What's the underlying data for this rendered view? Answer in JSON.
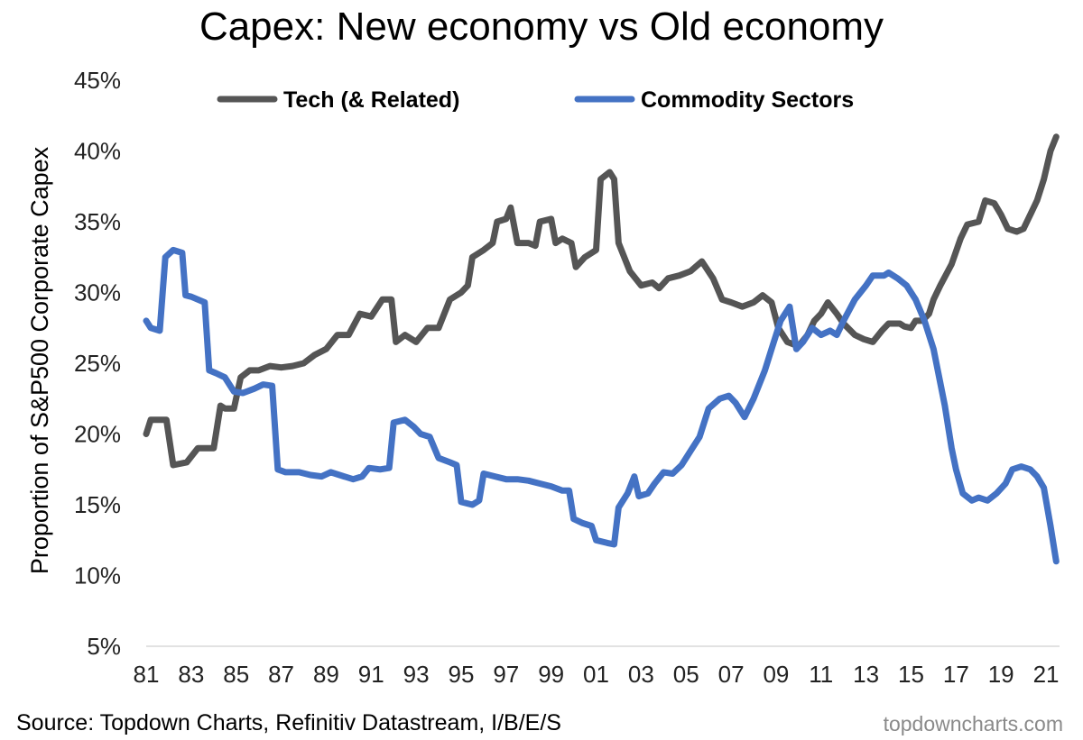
{
  "title": "Capex: New economy vs Old economy",
  "source": "Source: Topdown Charts, Refinitiv Datastream, I/B/E/S",
  "watermark": "topdowncharts.com",
  "chart_data": {
    "type": "line",
    "title": "Capex: New economy vs Old economy",
    "xlabel": "",
    "ylabel": "Proportion of S&P500 Corporate Capex",
    "x_ticks": [
      "81",
      "83",
      "85",
      "87",
      "89",
      "91",
      "93",
      "95",
      "97",
      "99",
      "01",
      "03",
      "05",
      "07",
      "09",
      "11",
      "13",
      "15",
      "17",
      "19",
      "21"
    ],
    "x_range": [
      1981,
      2021.6
    ],
    "ylim": [
      5,
      45
    ],
    "y_ticks": [
      5,
      10,
      15,
      20,
      25,
      30,
      35,
      40,
      45
    ],
    "y_tick_labels": [
      "5%",
      "10%",
      "15%",
      "20%",
      "25%",
      "30%",
      "35%",
      "40%",
      "45%"
    ],
    "grid": false,
    "legend_position": "top",
    "series": [
      {
        "name": "Tech (& Related)",
        "color": "#555555",
        "points": [
          [
            1981.0,
            20.0
          ],
          [
            1981.2,
            21.0
          ],
          [
            1981.9,
            21.0
          ],
          [
            1982.2,
            17.8
          ],
          [
            1982.8,
            18.0
          ],
          [
            1983.3,
            19.0
          ],
          [
            1983.7,
            19.0
          ],
          [
            1984.0,
            19.0
          ],
          [
            1984.3,
            22.0
          ],
          [
            1984.5,
            21.8
          ],
          [
            1984.9,
            21.8
          ],
          [
            1985.2,
            24.0
          ],
          [
            1985.6,
            24.5
          ],
          [
            1986.0,
            24.5
          ],
          [
            1986.5,
            24.8
          ],
          [
            1987.0,
            24.7
          ],
          [
            1987.5,
            24.8
          ],
          [
            1988.0,
            25.0
          ],
          [
            1988.5,
            25.6
          ],
          [
            1989.0,
            26.0
          ],
          [
            1989.5,
            27.0
          ],
          [
            1990.0,
            27.0
          ],
          [
            1990.5,
            28.5
          ],
          [
            1991.0,
            28.3
          ],
          [
            1991.5,
            29.5
          ],
          [
            1991.9,
            29.5
          ],
          [
            1992.1,
            26.5
          ],
          [
            1992.5,
            27.0
          ],
          [
            1993.0,
            26.5
          ],
          [
            1993.5,
            27.5
          ],
          [
            1994.0,
            27.5
          ],
          [
            1994.5,
            29.5
          ],
          [
            1995.0,
            30.0
          ],
          [
            1995.3,
            30.5
          ],
          [
            1995.5,
            32.5
          ],
          [
            1996.0,
            33.0
          ],
          [
            1996.4,
            33.5
          ],
          [
            1996.6,
            35.0
          ],
          [
            1997.0,
            35.2
          ],
          [
            1997.2,
            36.0
          ],
          [
            1997.5,
            33.5
          ],
          [
            1998.0,
            33.5
          ],
          [
            1998.3,
            33.3
          ],
          [
            1998.5,
            35.0
          ],
          [
            1999.0,
            35.2
          ],
          [
            1999.2,
            33.5
          ],
          [
            1999.5,
            33.8
          ],
          [
            1999.9,
            33.5
          ],
          [
            2000.1,
            31.8
          ],
          [
            2000.5,
            32.5
          ],
          [
            2001.0,
            33.0
          ],
          [
            2001.2,
            38.0
          ],
          [
            2001.6,
            38.5
          ],
          [
            2001.8,
            38.0
          ],
          [
            2002.0,
            33.5
          ],
          [
            2002.5,
            31.5
          ],
          [
            2003.0,
            30.5
          ],
          [
            2003.5,
            30.7
          ],
          [
            2003.8,
            30.3
          ],
          [
            2004.2,
            31.0
          ],
          [
            2004.7,
            31.2
          ],
          [
            2005.2,
            31.5
          ],
          [
            2005.7,
            32.2
          ],
          [
            2006.2,
            31.0
          ],
          [
            2006.6,
            29.5
          ],
          [
            2007.0,
            29.3
          ],
          [
            2007.5,
            29.0
          ],
          [
            2008.0,
            29.3
          ],
          [
            2008.4,
            29.8
          ],
          [
            2008.8,
            29.3
          ],
          [
            2009.1,
            27.5
          ],
          [
            2009.5,
            26.5
          ],
          [
            2010.0,
            26.2
          ],
          [
            2010.4,
            27.0
          ],
          [
            2010.7,
            28.0
          ],
          [
            2011.0,
            28.5
          ],
          [
            2011.3,
            29.3
          ],
          [
            2011.7,
            28.5
          ],
          [
            2012.0,
            27.8
          ],
          [
            2012.5,
            27.0
          ],
          [
            2012.9,
            26.7
          ],
          [
            2013.3,
            26.5
          ],
          [
            2013.7,
            27.3
          ],
          [
            2014.0,
            27.8
          ],
          [
            2014.5,
            27.8
          ],
          [
            2014.7,
            27.6
          ],
          [
            2015.0,
            27.5
          ],
          [
            2015.2,
            28.0
          ],
          [
            2015.5,
            28.0
          ],
          [
            2015.8,
            28.5
          ],
          [
            2016.0,
            29.5
          ],
          [
            2016.3,
            30.5
          ],
          [
            2016.8,
            32.0
          ],
          [
            2017.2,
            33.8
          ],
          [
            2017.5,
            34.8
          ],
          [
            2018.0,
            35.0
          ],
          [
            2018.3,
            36.5
          ],
          [
            2018.7,
            36.3
          ],
          [
            2019.0,
            35.5
          ],
          [
            2019.3,
            34.5
          ],
          [
            2019.7,
            34.3
          ],
          [
            2020.0,
            34.5
          ],
          [
            2020.3,
            35.5
          ],
          [
            2020.6,
            36.5
          ],
          [
            2020.9,
            38.0
          ],
          [
            2021.2,
            40.0
          ],
          [
            2021.45,
            41.0
          ]
        ]
      },
      {
        "name": "Commodity Sectors",
        "color": "#4472C4",
        "points": [
          [
            1981.0,
            28.0
          ],
          [
            1981.2,
            27.5
          ],
          [
            1981.6,
            27.3
          ],
          [
            1981.85,
            32.5
          ],
          [
            1982.2,
            33.0
          ],
          [
            1982.6,
            32.8
          ],
          [
            1982.75,
            29.8
          ],
          [
            1983.0,
            29.7
          ],
          [
            1983.6,
            29.3
          ],
          [
            1983.8,
            24.5
          ],
          [
            1984.1,
            24.3
          ],
          [
            1984.5,
            24.0
          ],
          [
            1984.9,
            23.0
          ],
          [
            1985.3,
            22.9
          ],
          [
            1985.8,
            23.2
          ],
          [
            1986.2,
            23.5
          ],
          [
            1986.6,
            23.4
          ],
          [
            1986.85,
            17.5
          ],
          [
            1987.2,
            17.3
          ],
          [
            1987.8,
            17.3
          ],
          [
            1988.3,
            17.1
          ],
          [
            1988.8,
            17.0
          ],
          [
            1989.2,
            17.3
          ],
          [
            1989.8,
            17.0
          ],
          [
            1990.2,
            16.8
          ],
          [
            1990.6,
            17.0
          ],
          [
            1990.9,
            17.6
          ],
          [
            1991.4,
            17.5
          ],
          [
            1991.8,
            17.6
          ],
          [
            1992.0,
            20.8
          ],
          [
            1992.5,
            21.0
          ],
          [
            1992.9,
            20.5
          ],
          [
            1993.2,
            20.0
          ],
          [
            1993.6,
            19.8
          ],
          [
            1994.0,
            18.3
          ],
          [
            1994.5,
            18.0
          ],
          [
            1994.8,
            17.8
          ],
          [
            1995.0,
            15.2
          ],
          [
            1995.5,
            15.0
          ],
          [
            1995.8,
            15.3
          ],
          [
            1996.0,
            17.2
          ],
          [
            1996.5,
            17.0
          ],
          [
            1997.0,
            16.8
          ],
          [
            1997.5,
            16.8
          ],
          [
            1998.0,
            16.7
          ],
          [
            1998.5,
            16.5
          ],
          [
            1999.0,
            16.3
          ],
          [
            1999.5,
            16.0
          ],
          [
            1999.8,
            16.0
          ],
          [
            2000.0,
            14.0
          ],
          [
            2000.4,
            13.7
          ],
          [
            2000.8,
            13.5
          ],
          [
            2001.0,
            12.5
          ],
          [
            2001.5,
            12.3
          ],
          [
            2001.8,
            12.2
          ],
          [
            2002.0,
            14.8
          ],
          [
            2002.4,
            15.8
          ],
          [
            2002.7,
            17.0
          ],
          [
            2002.9,
            15.6
          ],
          [
            2003.3,
            15.8
          ],
          [
            2003.6,
            16.5
          ],
          [
            2004.0,
            17.3
          ],
          [
            2004.4,
            17.2
          ],
          [
            2004.8,
            17.8
          ],
          [
            2005.2,
            18.8
          ],
          [
            2005.6,
            19.8
          ],
          [
            2006.0,
            21.8
          ],
          [
            2006.5,
            22.5
          ],
          [
            2006.9,
            22.7
          ],
          [
            2007.2,
            22.2
          ],
          [
            2007.6,
            21.2
          ],
          [
            2008.0,
            22.5
          ],
          [
            2008.5,
            24.5
          ],
          [
            2008.8,
            26.0
          ],
          [
            2009.2,
            28.0
          ],
          [
            2009.6,
            29.0
          ],
          [
            2009.9,
            26.0
          ],
          [
            2010.2,
            26.5
          ],
          [
            2010.6,
            27.5
          ],
          [
            2011.0,
            27.0
          ],
          [
            2011.4,
            27.3
          ],
          [
            2011.7,
            27.0
          ],
          [
            2012.0,
            28.0
          ],
          [
            2012.5,
            29.5
          ],
          [
            2013.0,
            30.5
          ],
          [
            2013.3,
            31.2
          ],
          [
            2013.8,
            31.2
          ],
          [
            2014.0,
            31.4
          ],
          [
            2014.4,
            31.0
          ],
          [
            2014.8,
            30.5
          ],
          [
            2015.2,
            29.5
          ],
          [
            2015.6,
            28.0
          ],
          [
            2016.0,
            26.0
          ],
          [
            2016.5,
            22.0
          ],
          [
            2016.8,
            19.0
          ],
          [
            2017.0,
            17.5
          ],
          [
            2017.3,
            15.8
          ],
          [
            2017.7,
            15.3
          ],
          [
            2018.0,
            15.5
          ],
          [
            2018.4,
            15.3
          ],
          [
            2018.8,
            15.8
          ],
          [
            2019.2,
            16.5
          ],
          [
            2019.5,
            17.5
          ],
          [
            2019.9,
            17.7
          ],
          [
            2020.3,
            17.5
          ],
          [
            2020.6,
            17.0
          ],
          [
            2020.9,
            16.2
          ],
          [
            2021.2,
            13.5
          ],
          [
            2021.45,
            11.0
          ]
        ]
      }
    ]
  }
}
